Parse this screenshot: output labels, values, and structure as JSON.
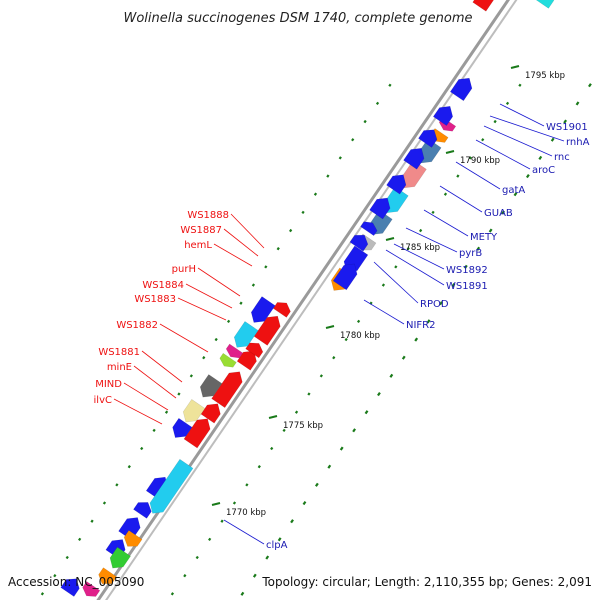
{
  "header": {
    "title": "Wolinella succinogenes DSM 1740, complete genome"
  },
  "footer": {
    "accession": "Accession: NC_005090",
    "summary": "Topology: circular; Length: 2,110,355 bp; Genes: 2,091"
  },
  "colors": {
    "forward": "#1a1aee",
    "reverse_red": "#ee1111",
    "orange": "#ff8c00",
    "cyan": "#22ccee",
    "steelblue": "#4a7fb0",
    "pink": "#f08a8a",
    "magenta": "#e0208a",
    "grey": "#666666",
    "khaki": "#eee39a",
    "green": "#33cc33",
    "backbone": "#9a9a9a",
    "label_red": "#ee1111",
    "label_blue": "#1a1ab0",
    "dots": "#1a7a1a"
  },
  "ticks": [
    {
      "label": "1795 kbp"
    },
    {
      "label": "1790 kbp"
    },
    {
      "label": "1785 kbp"
    },
    {
      "label": "1780 kbp"
    },
    {
      "label": "1775 kbp"
    },
    {
      "label": "1770 kbp"
    }
  ],
  "labels_right": [
    {
      "text": "WS1901"
    },
    {
      "text": "rnhA"
    },
    {
      "text": "rnc"
    },
    {
      "text": "aroC"
    },
    {
      "text": "gatA"
    },
    {
      "text": "GUAB"
    },
    {
      "text": "METY"
    },
    {
      "text": "pyrB"
    },
    {
      "text": "WS1892"
    },
    {
      "text": "WS1891"
    },
    {
      "text": "RPOD"
    },
    {
      "text": "NIFR2"
    },
    {
      "text": "clpA"
    }
  ],
  "labels_left": [
    {
      "text": "WS1888"
    },
    {
      "text": "WS1887"
    },
    {
      "text": "hemL"
    },
    {
      "text": "purH"
    },
    {
      "text": "WS1884"
    },
    {
      "text": "WS1883"
    },
    {
      "text": "WS1882"
    },
    {
      "text": "WS1881"
    },
    {
      "text": "minE"
    },
    {
      "text": "MIND"
    },
    {
      "text": "ilvC"
    }
  ]
}
